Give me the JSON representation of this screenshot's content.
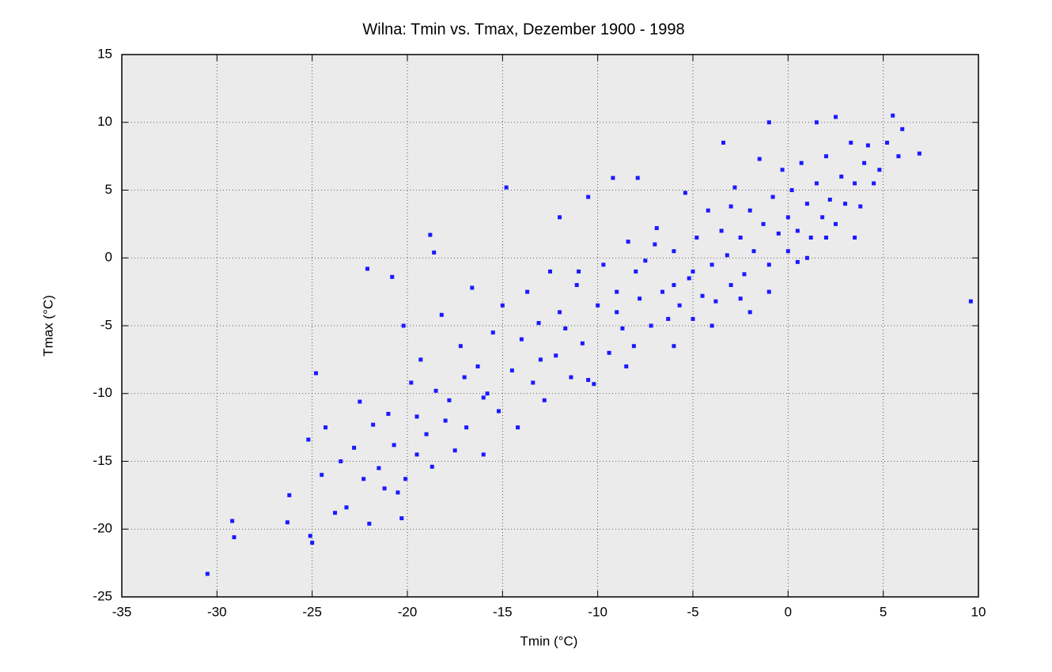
{
  "chart_data": {
    "type": "scatter",
    "title": "Wilna: Tmin vs. Tmax, Dezember 1900 - 1998",
    "x_label": "Tmin (°C)",
    "y_label": "Tmax (°C)",
    "color": "#1a1aff",
    "grid": true,
    "xlim": [
      -35,
      10
    ],
    "xticks": [
      -35,
      -30,
      -25,
      -20,
      -15,
      -10,
      -5,
      0,
      5,
      10
    ],
    "ylim": [
      -25,
      15
    ],
    "yticks": [
      -25,
      -20,
      -15,
      -10,
      -5,
      0,
      5,
      10,
      15
    ],
    "x": [
      -30.5,
      -29.2,
      -29.1,
      -26.3,
      -26.2,
      -25.1,
      -25,
      -25.2,
      -24.8,
      -24.5,
      -24.3,
      -23.8,
      -23.5,
      -23.2,
      -22.8,
      -22.5,
      -22.3,
      -22,
      -21.8,
      -21.5,
      -21.2,
      -21,
      -20.7,
      -20.5,
      -20.3,
      -20.1,
      -20.2,
      -19.8,
      -19.5,
      -19.3,
      -19,
      -18.7,
      -18.5,
      -18.2,
      -18,
      -17.8,
      -17.5,
      -17.2,
      -16.9,
      -16.6,
      -16.3,
      -16,
      -15.8,
      -15.5,
      -15.2,
      -15,
      -14.8,
      -18.8,
      -18.6,
      -22.1,
      -20.8,
      -14.5,
      -14.2,
      -14,
      -13.7,
      -13.4,
      -13.1,
      -12.8,
      -12.5,
      -12.2,
      -12,
      -11.7,
      -11.4,
      -11.1,
      -10.8,
      -10.5,
      -10.2,
      -10,
      -9.7,
      -9.4,
      -9.2,
      -9,
      -8.7,
      -8.4,
      -8.1,
      -7.9,
      -7.8,
      -7.5,
      -7.2,
      -6.9,
      -6.6,
      -6.3,
      -6,
      -5.7,
      -5.4,
      -5.2,
      -5,
      -4.8,
      -4.5,
      -4.2,
      -4,
      -3.8,
      -3.5,
      -3.4,
      -3.2,
      -3,
      -2.8,
      -2.5,
      -2.3,
      -2,
      -1.8,
      -1.5,
      -1.3,
      -1,
      -1,
      -0.8,
      -0.5,
      -0.3,
      0,
      0,
      0.2,
      0.5,
      0.7,
      1,
      1.2,
      1.5,
      1.5,
      1.8,
      2,
      2.2,
      2.5,
      2.5,
      2.8,
      3,
      3.3,
      3.5,
      3.8,
      4,
      4.2,
      4.5,
      4.8,
      5.2,
      5.5,
      5.8,
      6,
      6.9,
      9.6,
      -6,
      -8.5,
      -10.5,
      -2,
      -1,
      0.5,
      1,
      2,
      3.5,
      -3,
      -7,
      -11,
      -13,
      -16,
      -17,
      -19.5,
      -12,
      -9,
      -5,
      -4,
      -2.5,
      -6,
      -8
    ],
    "values": [
      -23.3,
      -19.4,
      -20.6,
      -19.5,
      -17.5,
      -20.5,
      -21,
      -13.4,
      -8.5,
      -16,
      -12.5,
      -18.8,
      -15,
      -18.4,
      -14,
      -10.6,
      -16.3,
      -19.6,
      -12.3,
      -15.5,
      -17,
      -11.5,
      -13.8,
      -17.3,
      -19.2,
      -16.3,
      -5,
      -9.2,
      -11.7,
      -7.5,
      -13,
      -15.4,
      -9.8,
      -4.2,
      -12,
      -10.5,
      -14.2,
      -6.5,
      -12.5,
      -2.2,
      -8,
      -14.5,
      -10,
      -5.5,
      -11.3,
      -3.5,
      5.2,
      1.7,
      0.4,
      -0.8,
      -1.4,
      -8.3,
      -12.5,
      -6,
      -2.5,
      -9.2,
      -4.8,
      -10.5,
      -1,
      -7.2,
      3,
      -5.2,
      -8.8,
      -2,
      -6.3,
      4.5,
      -9.3,
      -3.5,
      -0.5,
      -7,
      5.9,
      -2.5,
      -5.2,
      1.2,
      -6.5,
      5.9,
      -3,
      -0.2,
      -5,
      2.2,
      -2.5,
      -4.5,
      0.5,
      -3.5,
      4.8,
      -1.5,
      -4.5,
      1.5,
      -2.8,
      3.5,
      -0.5,
      -3.2,
      2,
      8.5,
      0.2,
      -2,
      5.2,
      1.5,
      -1.2,
      3.5,
      0.5,
      7.3,
      2.5,
      10,
      -0.5,
      4.5,
      1.8,
      6.5,
      3,
      0.5,
      5,
      2,
      7,
      4,
      1.5,
      10,
      5.5,
      3,
      7.5,
      4.3,
      10.4,
      2.5,
      6,
      4,
      8.5,
      5.5,
      3.8,
      7,
      8.3,
      5.5,
      6.5,
      8.5,
      10.5,
      7.5,
      9.5,
      7.7,
      -3.2,
      -6.5,
      -8,
      -9,
      -4,
      -2.5,
      -0.3,
      0,
      1.5,
      1.5,
      3.8,
      1,
      -1,
      -7.5,
      -10.3,
      -8.8,
      -14.5,
      -4,
      -4,
      -1,
      -5,
      -3,
      -2,
      -1
    ]
  }
}
